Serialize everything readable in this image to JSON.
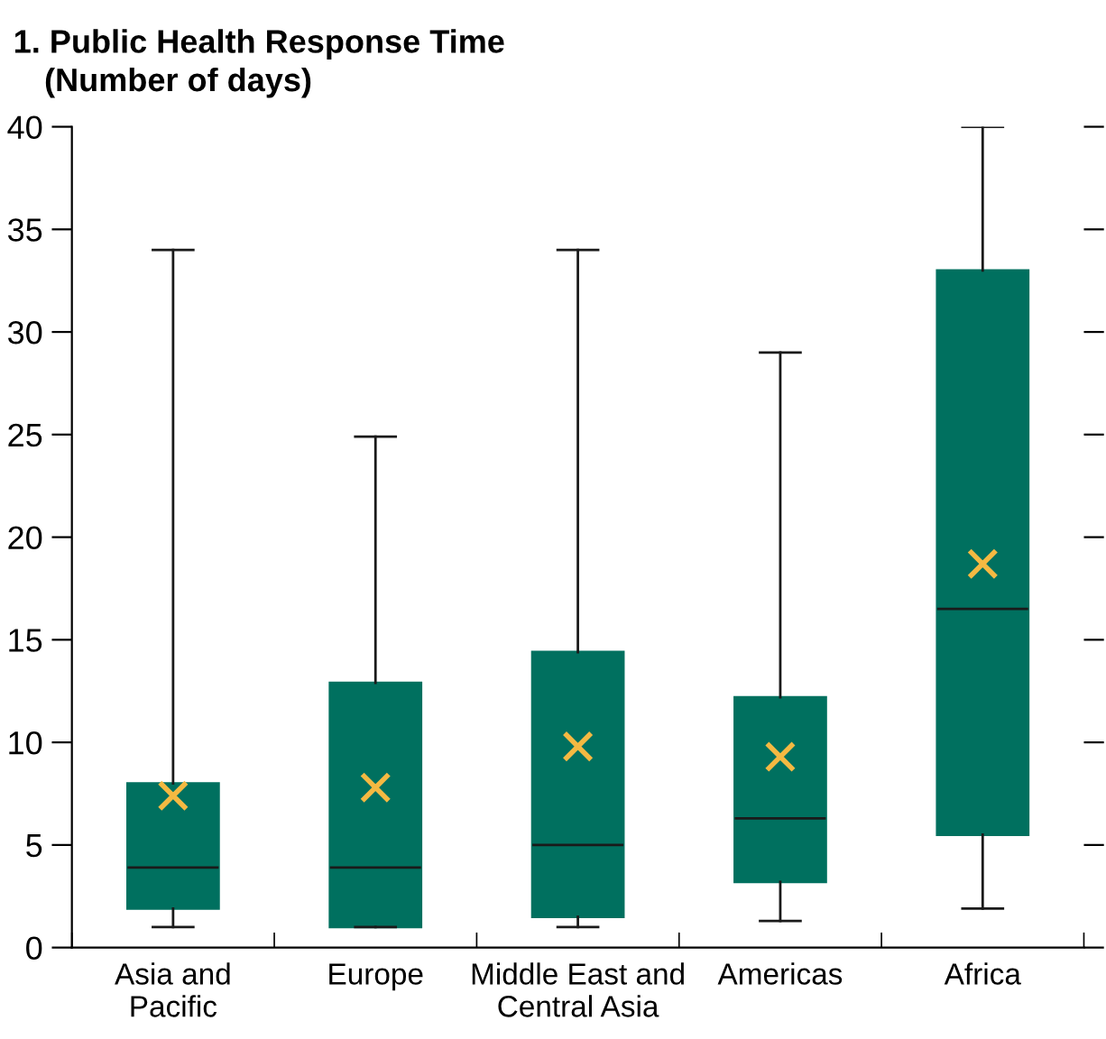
{
  "chart_data": {
    "type": "box",
    "title": "1. Public Health Response Time",
    "subtitle": "(Number of days)",
    "categories": [
      "Asia and\nPacific",
      "Europe",
      "Middle East and\nCentral Asia",
      "Americas",
      "Africa"
    ],
    "ylim": [
      0,
      40
    ],
    "yticks": [
      0,
      5,
      10,
      15,
      20,
      25,
      30,
      35,
      40
    ],
    "grid": false,
    "legend": false,
    "series": [
      {
        "type": "box",
        "color": "#00705f",
        "boxes": [
          {
            "low": 1,
            "q1": 1.9,
            "median": 3.9,
            "q3": 8,
            "high": 34
          },
          {
            "low": 1,
            "q1": 1,
            "median": 3.9,
            "q3": 12.9,
            "high": 24.9
          },
          {
            "low": 1,
            "q1": 1.5,
            "median": 5,
            "q3": 14.4,
            "high": 34
          },
          {
            "low": 1.3,
            "q1": 3.2,
            "median": 6.3,
            "q3": 12.2,
            "high": 29
          },
          {
            "low": 1.9,
            "q1": 5.5,
            "median": 16.5,
            "q3": 33,
            "high": 40
          }
        ]
      },
      {
        "type": "scatter",
        "color": "#f4b942",
        "marker": "cross",
        "x": [
          "Asia and\nPacific",
          "Europe",
          "Middle East and\nCentral Asia",
          "Americas",
          "Africa"
        ],
        "values": [
          7.4,
          7.8,
          9.8,
          9.3,
          18.7
        ]
      }
    ]
  }
}
